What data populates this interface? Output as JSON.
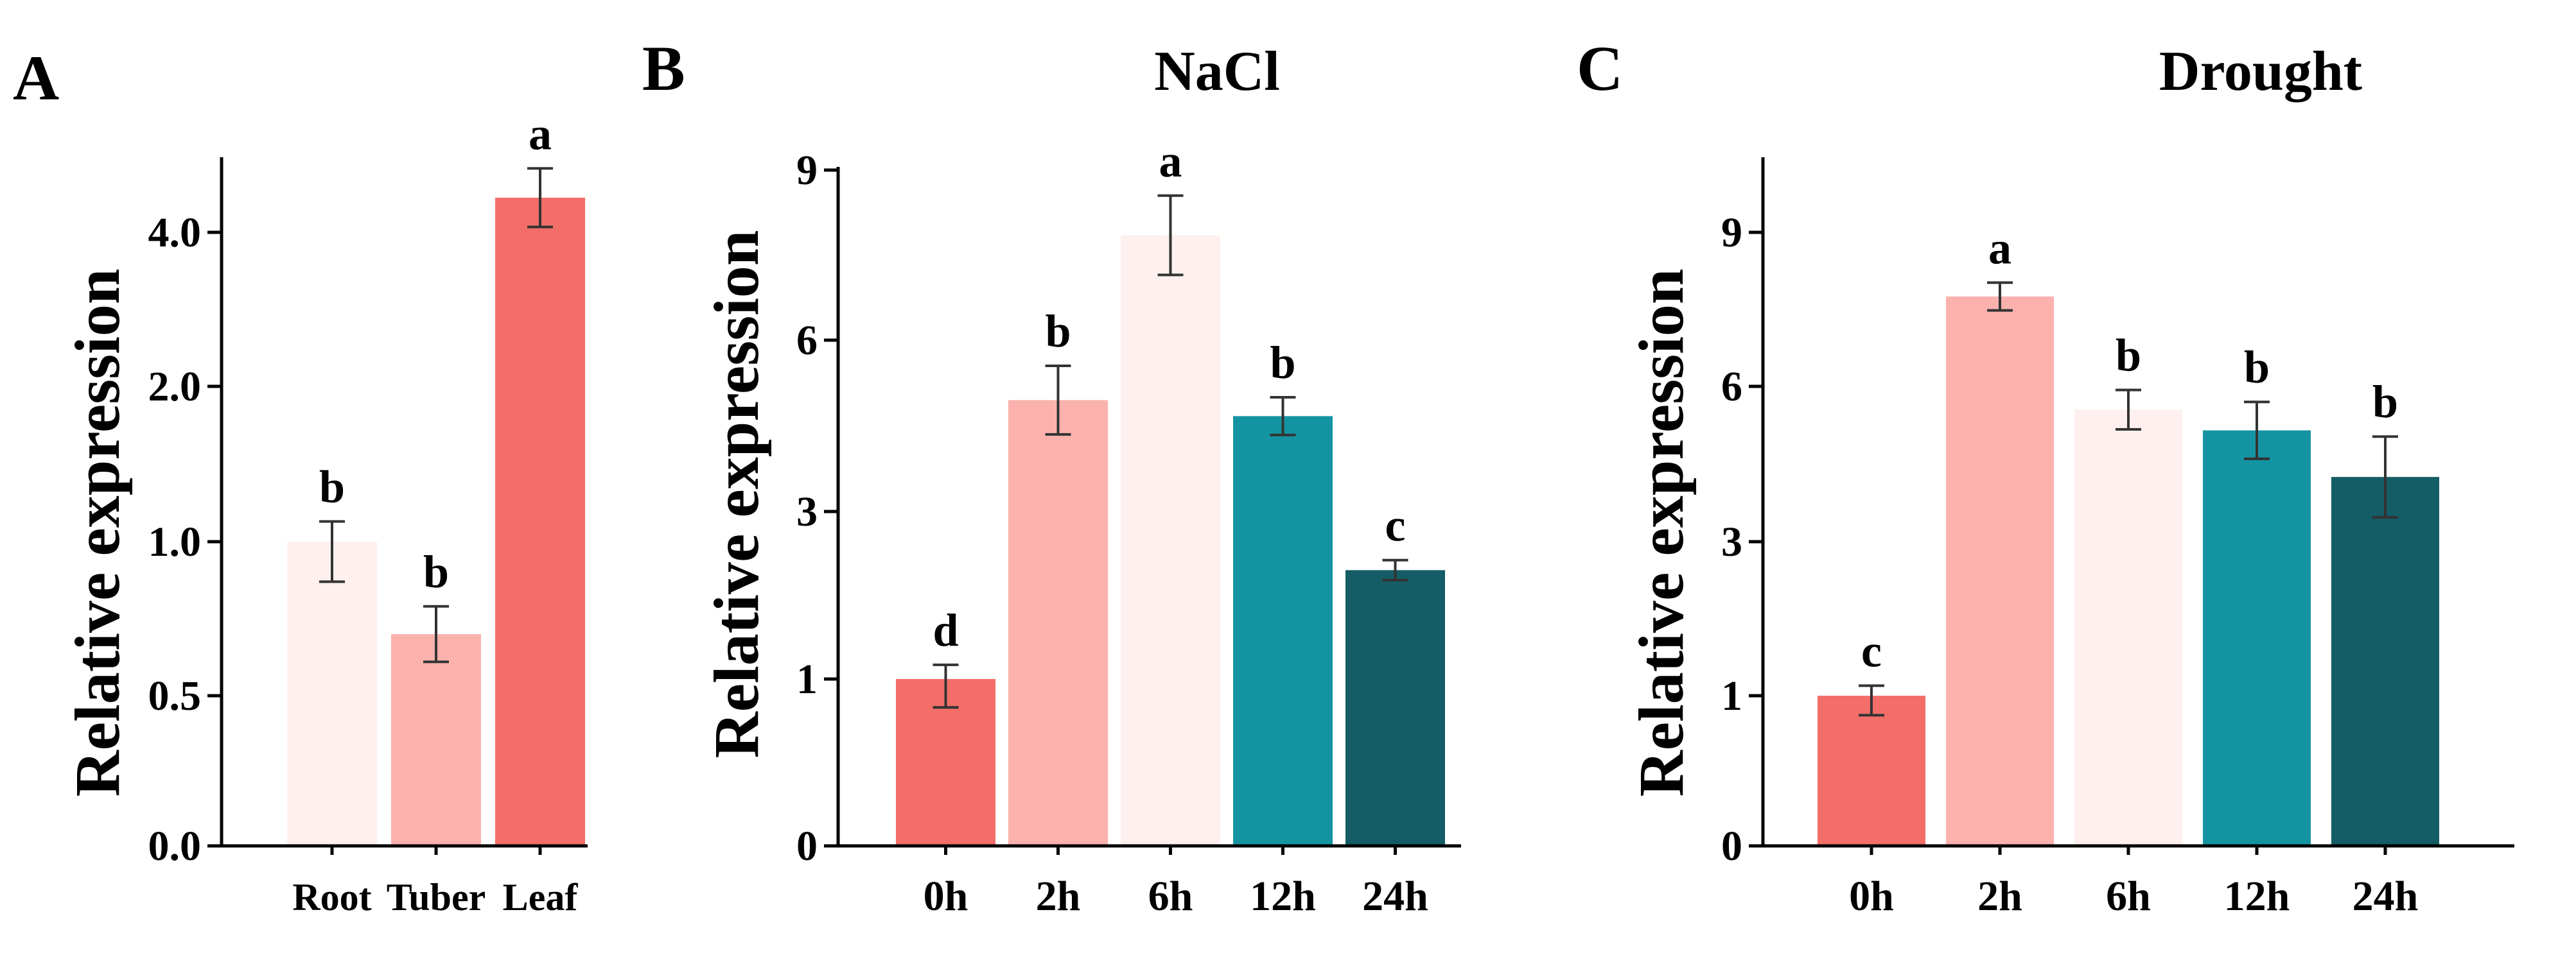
{
  "colors": {
    "very_light_pink": "#fdf0ef",
    "light_pink": "#fbb2ad",
    "coral": "#f36e69",
    "teal": "#1494a2",
    "dark_teal": "#145c66"
  },
  "chart_data": [
    {
      "panel": "A",
      "type": "bar",
      "title": "",
      "xlabel": "",
      "ylabel": "Relative expression",
      "categories": [
        "Root",
        "Tuber",
        "Leaf"
      ],
      "values": [
        1.0,
        0.7,
        4.45
      ],
      "errors": [
        0.13,
        0.09,
        0.38
      ],
      "significance": [
        "b",
        "b",
        "a"
      ],
      "bar_colors": [
        "#fdf0ef",
        "#fbb2ad",
        "#f36e69"
      ],
      "y_ticks": [
        {
          "value": 0.0,
          "label": "0.0"
        },
        {
          "value": 0.5,
          "label": "0.5"
        },
        {
          "value": 1.0,
          "label": "1.0"
        },
        {
          "value": 2.0,
          "label": "2.0"
        },
        {
          "value": 4.0,
          "label": "4.0"
        }
      ],
      "yscale": "log2-style (axis break-free nonlinear)"
    },
    {
      "panel": "B",
      "type": "bar",
      "title": "NaCl",
      "xlabel": "",
      "ylabel": "Relative expression",
      "categories": [
        "0h",
        "2h",
        "6h",
        "12h",
        "24h"
      ],
      "values": [
        1.0,
        4.95,
        7.85,
        4.67,
        2.3
      ],
      "errors": [
        0.17,
        0.6,
        0.7,
        0.33,
        0.12
      ],
      "significance": [
        "d",
        "b",
        "a",
        "b",
        "c"
      ],
      "bar_colors": [
        "#f36e69",
        "#fbb2ad",
        "#fdf0ef",
        "#1494a2",
        "#145c66"
      ],
      "y_ticks": [
        {
          "value": 0,
          "label": "0"
        },
        {
          "value": 1,
          "label": "1"
        },
        {
          "value": 3,
          "label": "3"
        },
        {
          "value": 6,
          "label": "6"
        },
        {
          "value": 9,
          "label": "9"
        }
      ],
      "yscale": "nonlinear"
    },
    {
      "panel": "C",
      "type": "bar",
      "title": "Drought",
      "xlabel": "",
      "ylabel": "Relative expression",
      "categories": [
        "0h",
        "2h",
        "6h",
        "12h",
        "24h"
      ],
      "values": [
        1.0,
        7.75,
        5.55,
        5.15,
        4.25
      ],
      "errors": [
        0.13,
        0.27,
        0.38,
        0.55,
        0.78
      ],
      "significance": [
        "c",
        "a",
        "b",
        "b",
        "b"
      ],
      "bar_colors": [
        "#f36e69",
        "#fbb2ad",
        "#fdf0ef",
        "#1494a2",
        "#145c66"
      ],
      "y_ticks": [
        {
          "value": 0,
          "label": "0"
        },
        {
          "value": 1,
          "label": "1"
        },
        {
          "value": 3,
          "label": "3"
        },
        {
          "value": 6,
          "label": "6"
        },
        {
          "value": 9,
          "label": "9"
        }
      ],
      "yscale": "nonlinear"
    }
  ]
}
